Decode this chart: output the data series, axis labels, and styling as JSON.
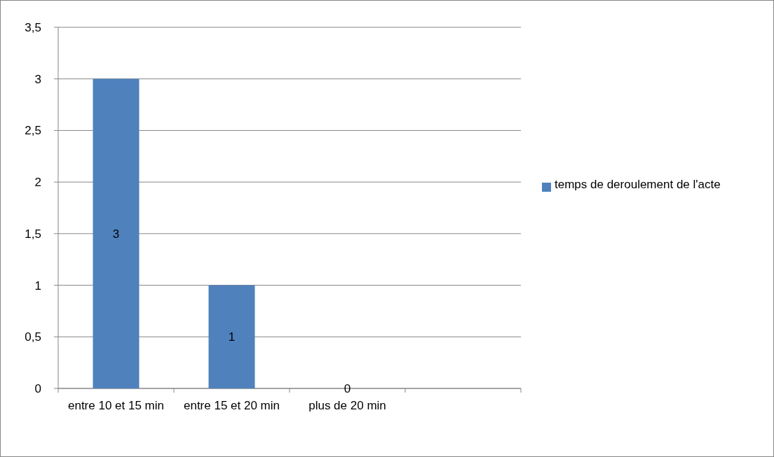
{
  "chart_data": {
    "type": "bar",
    "categories": [
      "entre 10 et 15 min",
      "entre 15 et 20 min",
      "plus de 20 min",
      null
    ],
    "series": [
      {
        "name": "temps de deroulement de l'acte",
        "color": "#4f81bd",
        "values": [
          3,
          1,
          0,
          null
        ]
      }
    ],
    "ylim": [
      0,
      3.5
    ],
    "yticks": [
      0,
      {
        "value": 0.5,
        "label": "0,5"
      },
      1,
      {
        "value": 1.5,
        "label": "1,5"
      },
      2,
      {
        "value": 2.5,
        "label": "2,5"
      },
      3,
      {
        "value": 3.5,
        "label": "3,5"
      }
    ],
    "grid": "y",
    "legend": "right",
    "data_labels": true
  }
}
